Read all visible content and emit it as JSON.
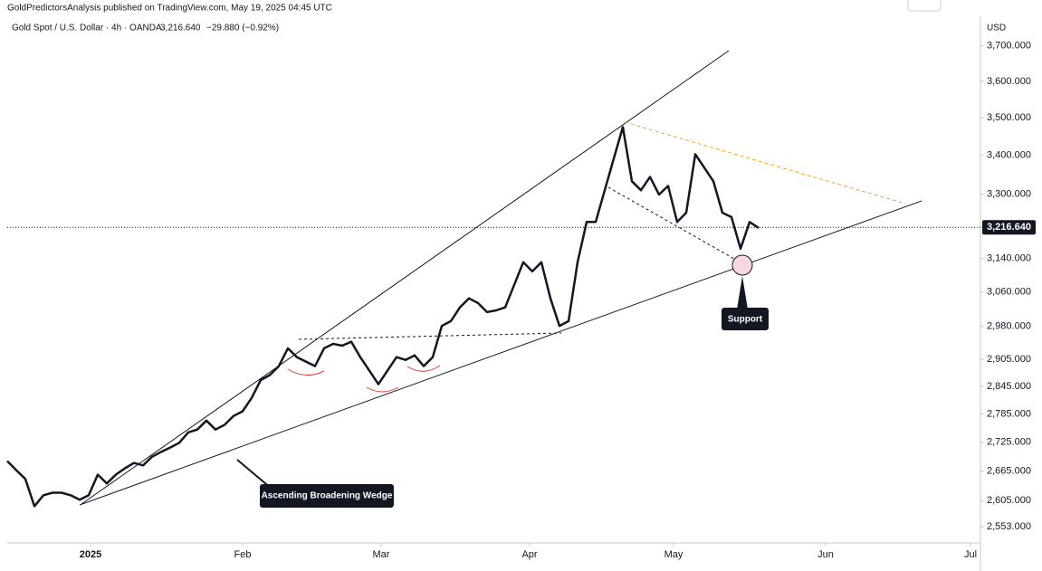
{
  "chart_data": {
    "type": "line",
    "subtitle": "GoldPredictorsAnalysis published on TradingView.com, May 19, 2025 04:45 UTC",
    "title": "Gold Spot / U.S. Dollar · 4h · OANDA",
    "header_price": "3,216.640",
    "header_change": "−29.880 (−0.92%)",
    "y_unit": "USD",
    "annotations": [
      "Ascending Broadening Wedge",
      "Support"
    ],
    "color": "#131722",
    "log_scale": true,
    "values": [
      2686,
      2667,
      2649,
      2594,
      2616,
      2621,
      2621,
      2616,
      2607,
      2616,
      2658,
      2640,
      2658,
      2671,
      2682,
      2677,
      2695,
      2705,
      2714,
      2724,
      2746,
      2752,
      2771,
      2752,
      2762,
      2781,
      2791,
      2820,
      2859,
      2870,
      2890,
      2930,
      2910,
      2900,
      2890,
      2930,
      2940,
      2936,
      2945,
      2910,
      2880,
      2850,
      2880,
      2910,
      2904,
      2914,
      2890,
      2910,
      2981,
      2992,
      3024,
      3045,
      3034,
      3013,
      3017,
      3024,
      3077,
      3131,
      3109,
      3131,
      3045,
      2981,
      2992,
      3131,
      3230,
      3230,
      3310,
      3392,
      3475,
      3333,
      3310,
      3344,
      3299,
      3321,
      3230,
      3253,
      3403,
      3368,
      3333,
      3253,
      3242,
      3164,
      3230,
      3215
    ],
    "last_price": {
      "value": 3216.64,
      "label": "3,216.640"
    },
    "xlim": [
      0,
      107.5
    ],
    "xticks": [
      {
        "value": 9.2,
        "label": "2025"
      },
      {
        "value": 26,
        "label": "Feb"
      },
      {
        "value": 41.3,
        "label": "Mar"
      },
      {
        "value": 57.7,
        "label": "Apr"
      },
      {
        "value": 73.6,
        "label": "May"
      },
      {
        "value": 90.4,
        "label": "Jun"
      },
      {
        "value": 106.4,
        "label": "Jul"
      }
    ],
    "ylim": [
      2525,
      3780
    ],
    "yticks": [
      {
        "value": 3700,
        "label": "3,700.000"
      },
      {
        "value": 3600,
        "label": "3,600.000"
      },
      {
        "value": 3500,
        "label": "3,500.000"
      },
      {
        "value": 3400,
        "label": "3,400.000"
      },
      {
        "value": 3300,
        "label": "3,300.000"
      },
      {
        "value": 3140,
        "label": "3,140.000"
      },
      {
        "value": 3060,
        "label": "3,060.000"
      },
      {
        "value": 2980,
        "label": "2,980.000"
      },
      {
        "value": 2905,
        "label": "2,905.000"
      },
      {
        "value": 2845,
        "label": "2,845.000"
      },
      {
        "value": 2785,
        "label": "2,785.000"
      },
      {
        "value": 2725,
        "label": "2,725.000"
      },
      {
        "value": 2665,
        "label": "2,665.000"
      },
      {
        "value": 2605,
        "label": "2,605.000"
      },
      {
        "value": 2553,
        "label": "2,553.000"
      }
    ]
  }
}
